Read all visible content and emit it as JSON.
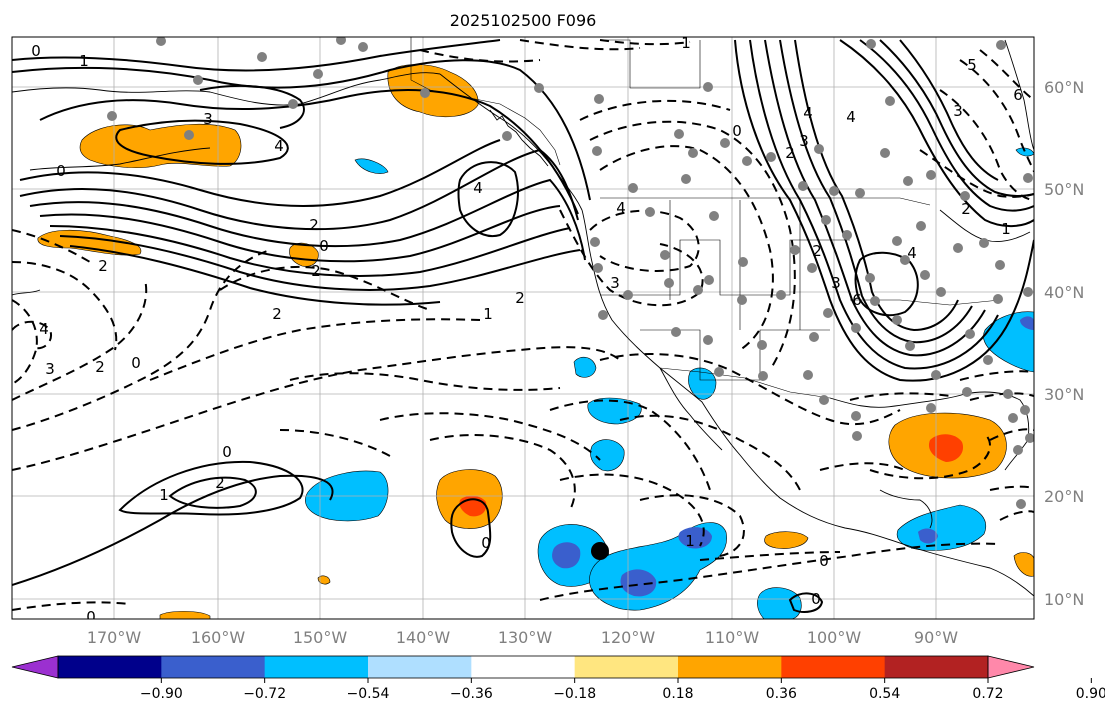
{
  "title": "2025102500 F096",
  "longitude_labels": [
    "170°W",
    "160°W",
    "150°W",
    "140°W",
    "130°W",
    "120°W",
    "110°W",
    "100°W",
    "90°W"
  ],
  "latitude_labels": [
    "60°N",
    "50°N",
    "40°N",
    "30°N",
    "20°N",
    "10°N"
  ],
  "colorbar": {
    "tick_labels": [
      "−0.90",
      "−0.72",
      "−0.54",
      "−0.36",
      "−0.18",
      "0.18",
      "0.36",
      "0.54",
      "0.72",
      "0.90"
    ],
    "colors": [
      "#9b30d0",
      "#00008b",
      "#3a5fcd",
      "#00bfff",
      "#afdfff",
      "#ffffff",
      "#ffe680",
      "#ffa500",
      "#ff4000",
      "#b22222",
      "#ff88aa"
    ]
  },
  "contour_labels": [
    "0",
    "1",
    "3",
    "4",
    "2",
    "4",
    "2",
    "0",
    "0",
    "1",
    "4",
    "2",
    "3",
    "4",
    "6",
    "5",
    "4",
    "0",
    "2",
    "3",
    "4",
    "3",
    "6",
    "2",
    "1",
    "0",
    "2",
    "3",
    "4",
    "2",
    "0",
    "2",
    "3",
    "1",
    "2",
    "0",
    "1",
    "2",
    "1",
    "0",
    "0",
    "0"
  ],
  "colors": {
    "positive_fill": "#ffa500",
    "strong_positive_fill": "#ff4000",
    "negative_fill": "#00bfff",
    "strong_negative_fill": "#3a5fcd",
    "gridline": "#b0b0b0",
    "station_dot": "#808080"
  }
}
